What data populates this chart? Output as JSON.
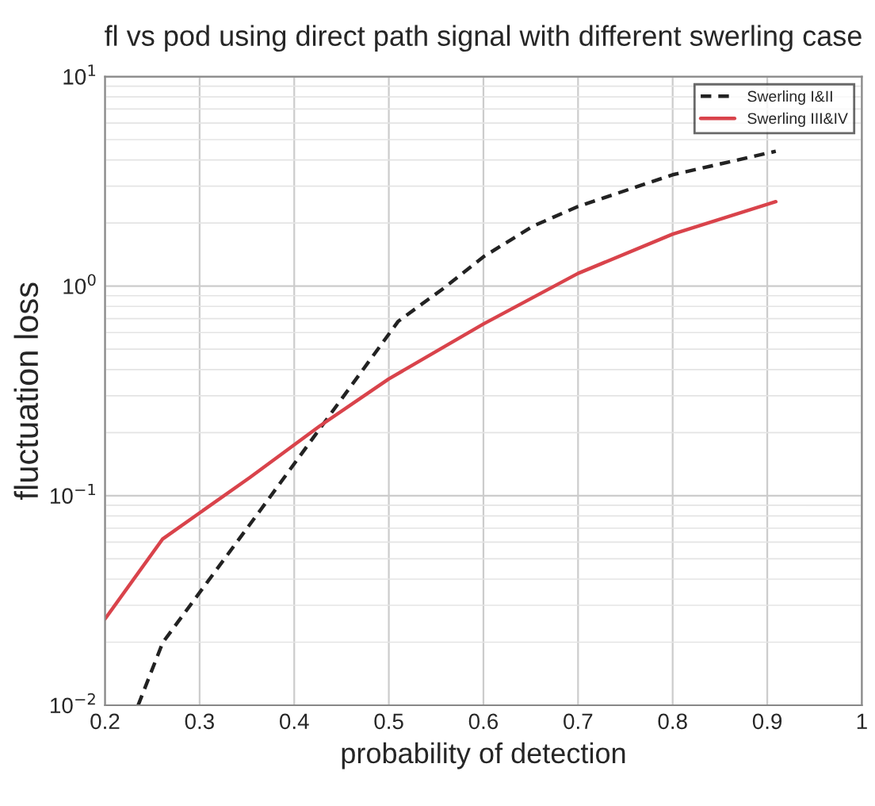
{
  "chart_data": {
    "type": "line",
    "title": "fl vs pod using direct path signal with different swerling case",
    "xlabel": "probability of detection",
    "ylabel": "fluctuation loss",
    "log": "y",
    "xlim": [
      0.2,
      1
    ],
    "xticks": [
      0.2,
      0.3,
      0.4,
      0.5,
      0.6,
      0.7,
      0.8,
      0.9,
      1
    ],
    "ylim": [
      0.01,
      10
    ],
    "yticks": [
      {
        "value": 0.01,
        "label": "10$^{−2}$"
      },
      {
        "value": 0.1,
        "label": "10$^{−1}$"
      },
      {
        "value": 1,
        "label": "10$^{0}$"
      },
      {
        "value": 10,
        "label": "10$^{1}$"
      }
    ],
    "grid": true,
    "legend": "top right",
    "series": [
      {
        "name": "Swerling I&II",
        "color": "#222222",
        "line_style": "dashed",
        "x": [
          0.235,
          0.261,
          0.364,
          0.51,
          0.557,
          0.6,
          0.652,
          0.7,
          0.8,
          0.909
        ],
        "values": [
          0.01,
          0.0199,
          0.085,
          0.68,
          0.97,
          1.38,
          1.93,
          2.4,
          3.4,
          4.4
        ]
      },
      {
        "name": "Swerling III&IV",
        "color": "#d9434b",
        "line_style": "solid",
        "x": [
          0.2,
          0.261,
          0.353,
          0.427,
          0.5,
          0.6,
          0.7,
          0.8,
          0.909
        ],
        "values": [
          0.0258,
          0.0622,
          0.122,
          0.215,
          0.361,
          0.66,
          1.15,
          1.77,
          2.53
        ]
      }
    ]
  }
}
